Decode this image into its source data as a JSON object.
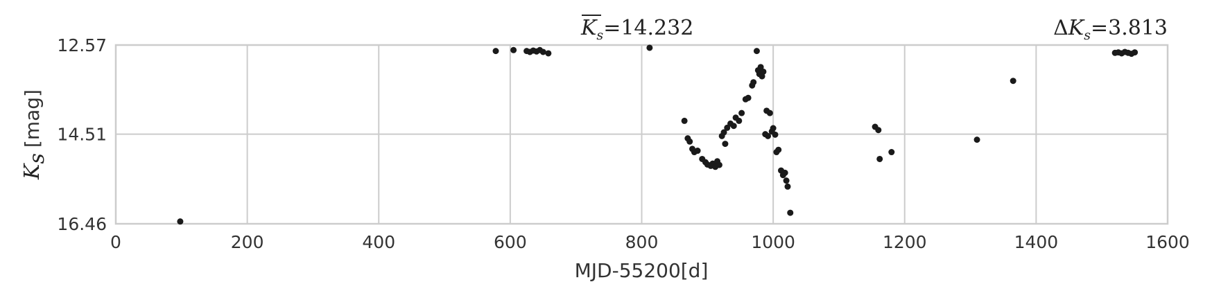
{
  "chart_data": {
    "type": "scatter",
    "xlabel": "MJD-55200[d]",
    "ylabel": {
      "symbol": "K",
      "subscript": "s",
      "unit": "[mag]"
    },
    "annotation_left": {
      "symbol": "K",
      "subscript": "s",
      "value": "=14.232"
    },
    "annotation_right": {
      "prefix": "Δ",
      "symbol": "K",
      "subscript": "s",
      "value": "=3.813"
    },
    "xlim": [
      0,
      1600
    ],
    "ylim": [
      16.46,
      12.57
    ],
    "y_inverted": true,
    "grid": true,
    "x_ticks": [
      "0",
      "200",
      "400",
      "600",
      "800",
      "1000",
      "1200",
      "1400",
      "1600"
    ],
    "y_ticks": [
      "12.57",
      "14.51",
      "16.46"
    ],
    "point_color": "#1a1a1a",
    "series": [
      {
        "points": [
          [
            98,
            16.41
          ],
          [
            578,
            12.7
          ],
          [
            605,
            12.68
          ],
          [
            625,
            12.7
          ],
          [
            630,
            12.72
          ],
          [
            635,
            12.69
          ],
          [
            640,
            12.71
          ],
          [
            645,
            12.68
          ],
          [
            650,
            12.72
          ],
          [
            658,
            12.75
          ],
          [
            812,
            12.63
          ],
          [
            865,
            14.22
          ],
          [
            870,
            14.6
          ],
          [
            873,
            14.67
          ],
          [
            877,
            14.83
          ],
          [
            880,
            14.9
          ],
          [
            885,
            14.87
          ],
          [
            892,
            15.05
          ],
          [
            897,
            15.12
          ],
          [
            900,
            15.17
          ],
          [
            905,
            15.2
          ],
          [
            908,
            15.15
          ],
          [
            912,
            15.22
          ],
          [
            915,
            15.1
          ],
          [
            918,
            15.18
          ],
          [
            922,
            14.55
          ],
          [
            925,
            14.47
          ],
          [
            927,
            14.72
          ],
          [
            930,
            14.37
          ],
          [
            935,
            14.28
          ],
          [
            940,
            14.33
          ],
          [
            943,
            14.15
          ],
          [
            948,
            14.22
          ],
          [
            952,
            14.05
          ],
          [
            958,
            13.75
          ],
          [
            962,
            13.72
          ],
          [
            968,
            13.45
          ],
          [
            970,
            13.38
          ],
          [
            975,
            12.7
          ],
          [
            977,
            13.12
          ],
          [
            979,
            13.2
          ],
          [
            981,
            13.05
          ],
          [
            983,
            13.25
          ],
          [
            985,
            13.15
          ],
          [
            988,
            14.51
          ],
          [
            990,
            14.0
          ],
          [
            992,
            14.55
          ],
          [
            995,
            14.05
          ],
          [
            998,
            14.45
          ],
          [
            1000,
            14.38
          ],
          [
            1003,
            14.52
          ],
          [
            1005,
            14.9
          ],
          [
            1008,
            14.85
          ],
          [
            1012,
            15.3
          ],
          [
            1015,
            15.4
          ],
          [
            1018,
            15.35
          ],
          [
            1020,
            15.52
          ],
          [
            1022,
            15.65
          ],
          [
            1026,
            16.22
          ],
          [
            1155,
            14.35
          ],
          [
            1160,
            14.42
          ],
          [
            1162,
            15.05
          ],
          [
            1180,
            14.9
          ],
          [
            1310,
            14.63
          ],
          [
            1365,
            13.35
          ],
          [
            1520,
            12.74
          ],
          [
            1525,
            12.73
          ],
          [
            1530,
            12.75
          ],
          [
            1535,
            12.72
          ],
          [
            1540,
            12.74
          ],
          [
            1545,
            12.76
          ],
          [
            1550,
            12.73
          ]
        ]
      }
    ]
  }
}
